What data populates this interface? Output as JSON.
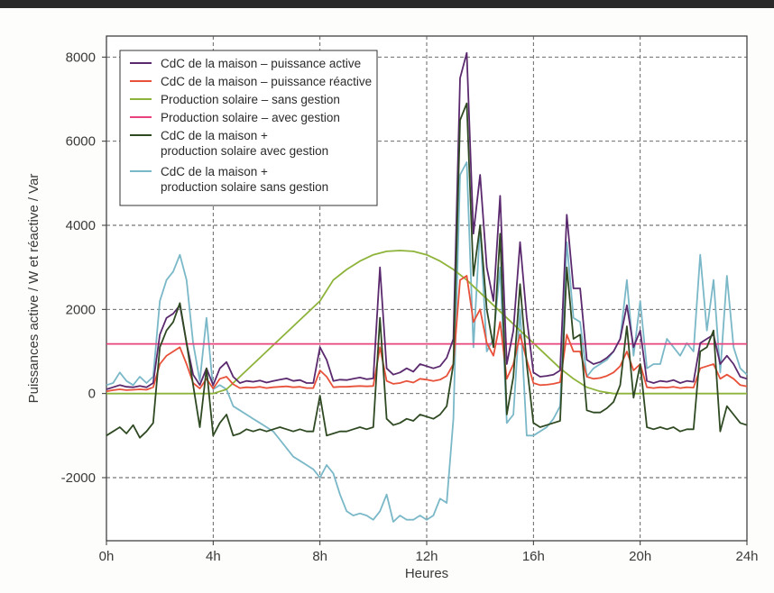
{
  "chart_data": {
    "type": "line",
    "xlabel": "Heures",
    "ylabel": "Puissances active / W et réactive / Var",
    "xlim": [
      0,
      24
    ],
    "ylim": [
      -3500,
      8500
    ],
    "x_ticks": [
      0,
      4,
      8,
      12,
      16,
      20,
      24
    ],
    "x_tick_labels": [
      "0h",
      "4h",
      "8h",
      "12h",
      "16h",
      "20h",
      "24h"
    ],
    "y_ticks": [
      -2000,
      0,
      2000,
      4000,
      6000,
      8000
    ],
    "y_tick_labels": [
      "-2000",
      "0",
      "2000",
      "4000",
      "6000",
      "8000"
    ],
    "grid": true,
    "legend_position": "top-left",
    "series": [
      {
        "name": "CdC de la maison – puissance active",
        "color": "#5b2a6e",
        "x": [
          0,
          0.25,
          0.5,
          0.75,
          1,
          1.25,
          1.5,
          1.75,
          2,
          2.25,
          2.5,
          2.75,
          3,
          3.25,
          3.5,
          3.75,
          4,
          4.25,
          4.5,
          4.75,
          5,
          5.25,
          5.5,
          5.75,
          6,
          6.25,
          6.5,
          6.75,
          7,
          7.25,
          7.5,
          7.75,
          8,
          8.25,
          8.5,
          8.75,
          9,
          9.25,
          9.5,
          9.75,
          10,
          10.25,
          10.5,
          10.75,
          11,
          11.25,
          11.5,
          11.75,
          12,
          12.25,
          12.5,
          12.75,
          13,
          13.25,
          13.5,
          13.75,
          14,
          14.25,
          14.5,
          14.75,
          15,
          15.25,
          15.5,
          15.75,
          16,
          16.25,
          16.5,
          16.75,
          17,
          17.25,
          17.5,
          17.75,
          18,
          18.25,
          18.5,
          18.75,
          19,
          19.25,
          19.5,
          19.75,
          20,
          20.25,
          20.5,
          20.75,
          21,
          21.25,
          21.5,
          21.75,
          22,
          22.25,
          22.5,
          22.75,
          23,
          23.25,
          23.5,
          23.75,
          24
        ],
        "values": [
          100,
          150,
          200,
          160,
          150,
          180,
          150,
          250,
          1400,
          1800,
          1900,
          2100,
          1200,
          450,
          200,
          600,
          200,
          600,
          750,
          400,
          250,
          300,
          280,
          310,
          260,
          300,
          330,
          360,
          300,
          320,
          250,
          250,
          1100,
          800,
          300,
          330,
          320,
          350,
          380,
          340,
          360,
          3000,
          600,
          450,
          500,
          600,
          520,
          700,
          650,
          600,
          650,
          850,
          1300,
          7500,
          8100,
          3800,
          5200,
          3000,
          2200,
          4700,
          700,
          1500,
          3600,
          1800,
          500,
          400,
          420,
          450,
          550,
          4250,
          2500,
          2500,
          800,
          700,
          750,
          850,
          1000,
          1300,
          2100,
          1100,
          1500,
          300,
          250,
          300,
          280,
          320,
          250,
          300,
          280,
          1200,
          1300,
          1400,
          700,
          900,
          700,
          400,
          350
        ]
      },
      {
        "name": "CdC de la maison – puissance réactive",
        "color": "#e8513a",
        "x": [
          0,
          0.25,
          0.5,
          0.75,
          1,
          1.25,
          1.5,
          1.75,
          2,
          2.25,
          2.5,
          2.75,
          3,
          3.25,
          3.5,
          3.75,
          4,
          4.25,
          4.5,
          4.75,
          5,
          5.25,
          5.5,
          5.75,
          6,
          6.25,
          6.5,
          6.75,
          7,
          7.25,
          7.5,
          7.75,
          8,
          8.25,
          8.5,
          8.75,
          9,
          9.25,
          9.5,
          9.75,
          10,
          10.25,
          10.5,
          10.75,
          11,
          11.25,
          11.5,
          11.75,
          12,
          12.25,
          12.5,
          12.75,
          13,
          13.25,
          13.5,
          13.75,
          14,
          14.25,
          14.5,
          14.75,
          15,
          15.25,
          15.5,
          15.75,
          16,
          16.25,
          16.5,
          16.75,
          17,
          17.25,
          17.5,
          17.75,
          18,
          18.25,
          18.5,
          18.75,
          19,
          19.25,
          19.5,
          19.75,
          20,
          20.25,
          20.5,
          20.75,
          21,
          21.25,
          21.5,
          21.75,
          22,
          22.25,
          22.5,
          22.75,
          23,
          23.25,
          23.5,
          23.75,
          24
        ],
        "values": [
          50,
          80,
          100,
          80,
          90,
          100,
          90,
          150,
          700,
          900,
          1000,
          1100,
          700,
          250,
          120,
          350,
          120,
          350,
          400,
          220,
          130,
          150,
          140,
          160,
          130,
          150,
          160,
          170,
          150,
          160,
          130,
          130,
          550,
          400,
          150,
          160,
          160,
          170,
          180,
          170,
          180,
          1100,
          300,
          230,
          250,
          300,
          260,
          350,
          330,
          300,
          330,
          420,
          700,
          2700,
          2800,
          1700,
          2000,
          1200,
          900,
          1700,
          350,
          700,
          1400,
          800,
          250,
          200,
          210,
          230,
          270,
          1400,
          1000,
          1000,
          400,
          350,
          370,
          420,
          500,
          650,
          1000,
          550,
          700,
          150,
          130,
          150,
          140,
          160,
          130,
          150,
          140,
          600,
          650,
          700,
          350,
          450,
          350,
          200,
          170
        ]
      },
      {
        "name": "Production solaire – sans gestion",
        "color": "#8db33a",
        "x": [
          0,
          4,
          4.5,
          5,
          5.5,
          6,
          6.5,
          7,
          7.5,
          8,
          8.5,
          9,
          9.5,
          10,
          10.5,
          11,
          11.5,
          12,
          12.5,
          13,
          13.5,
          14,
          14.5,
          15,
          15.5,
          16,
          16.5,
          17,
          17.5,
          18,
          18.5,
          19,
          20,
          24
        ],
        "values": [
          0,
          0,
          100,
          400,
          700,
          1000,
          1300,
          1600,
          1900,
          2200,
          2700,
          2950,
          3150,
          3300,
          3380,
          3400,
          3380,
          3300,
          3150,
          2950,
          2700,
          2400,
          2100,
          1800,
          1500,
          1200,
          900,
          600,
          350,
          150,
          50,
          0,
          0,
          0
        ]
      },
      {
        "name": "Production solaire – avec gestion",
        "color": "#e8437d",
        "x": [
          0,
          24
        ],
        "values": [
          1180,
          1180
        ]
      },
      {
        "name": "CdC de la maison + production solaire avec gestion",
        "color": "#2f4a22",
        "x": [
          0,
          0.25,
          0.5,
          0.75,
          1,
          1.25,
          1.5,
          1.75,
          2,
          2.25,
          2.5,
          2.75,
          3,
          3.25,
          3.5,
          3.75,
          4,
          4.25,
          4.5,
          4.75,
          5,
          5.25,
          5.5,
          5.75,
          6,
          6.25,
          6.5,
          6.75,
          7,
          7.25,
          7.5,
          7.75,
          8,
          8.25,
          8.5,
          8.75,
          9,
          9.25,
          9.5,
          9.75,
          10,
          10.25,
          10.5,
          10.75,
          11,
          11.25,
          11.5,
          11.75,
          12,
          12.25,
          12.5,
          12.75,
          13,
          13.25,
          13.5,
          13.75,
          14,
          14.25,
          14.5,
          14.75,
          15,
          15.25,
          15.5,
          15.75,
          16,
          16.25,
          16.5,
          16.75,
          17,
          17.25,
          17.5,
          17.75,
          18,
          18.25,
          18.5,
          18.75,
          19,
          19.25,
          19.5,
          19.75,
          20,
          20.25,
          20.5,
          20.75,
          21,
          21.25,
          21.5,
          21.75,
          22,
          22.25,
          22.5,
          22.75,
          23,
          23.25,
          23.5,
          23.75,
          24
        ],
        "values": [
          -1000,
          -900,
          -800,
          -950,
          -750,
          -1050,
          -900,
          -700,
          1100,
          1500,
          1700,
          2150,
          1200,
          200,
          -800,
          600,
          -1000,
          -700,
          -500,
          -1000,
          -950,
          -850,
          -900,
          -850,
          -900,
          -850,
          -800,
          -850,
          -900,
          -850,
          -900,
          -900,
          -50,
          -1000,
          -950,
          -900,
          -900,
          -850,
          -800,
          -850,
          -800,
          1800,
          -600,
          -750,
          -700,
          -600,
          -650,
          -500,
          -550,
          -600,
          -500,
          -300,
          700,
          6500,
          6900,
          2800,
          4000,
          2000,
          1100,
          3800,
          -500,
          400,
          2600,
          700,
          -700,
          -800,
          -750,
          -700,
          -650,
          3000,
          1300,
          1400,
          -400,
          -450,
          -450,
          -350,
          -200,
          200,
          1600,
          -100,
          700,
          -800,
          -850,
          -800,
          -850,
          -800,
          -900,
          -850,
          -850,
          1000,
          1100,
          1500,
          -900,
          -300,
          -500,
          -700,
          -750
        ]
      },
      {
        "name": "CdC de la maison + production solaire sans gestion",
        "color": "#7ab8c8",
        "x": [
          0,
          0.25,
          0.5,
          0.75,
          1,
          1.25,
          1.5,
          1.75,
          2,
          2.25,
          2.5,
          2.75,
          3,
          3.25,
          3.5,
          3.75,
          4,
          4.25,
          4.5,
          4.75,
          5,
          5.25,
          5.5,
          5.75,
          6,
          6.25,
          6.5,
          6.75,
          7,
          7.25,
          7.5,
          7.75,
          8,
          8.25,
          8.5,
          8.75,
          9,
          9.25,
          9.5,
          9.75,
          10,
          10.25,
          10.5,
          10.75,
          11,
          11.25,
          11.5,
          11.75,
          12,
          12.25,
          12.5,
          12.75,
          13,
          13.25,
          13.5,
          13.75,
          14,
          14.25,
          14.5,
          14.75,
          15,
          15.25,
          15.5,
          15.75,
          16,
          16.25,
          16.5,
          16.75,
          17,
          17.25,
          17.5,
          17.75,
          18,
          18.25,
          18.5,
          18.75,
          19,
          19.25,
          19.5,
          19.75,
          20,
          20.25,
          20.5,
          20.75,
          21,
          21.25,
          21.5,
          21.75,
          22,
          22.25,
          22.5,
          22.75,
          23,
          23.25,
          23.5,
          23.75,
          24
        ],
        "values": [
          200,
          250,
          500,
          300,
          200,
          400,
          250,
          400,
          2200,
          2700,
          2900,
          3300,
          2700,
          1200,
          300,
          1800,
          100,
          200,
          100,
          -300,
          -400,
          -500,
          -600,
          -700,
          -800,
          -900,
          -1100,
          -1300,
          -1500,
          -1600,
          -1700,
          -1800,
          -2000,
          -1700,
          -1900,
          -2400,
          -2800,
          -2900,
          -2850,
          -2900,
          -3000,
          -2800,
          -2400,
          -3050,
          -2900,
          -3000,
          -3000,
          -2900,
          -3000,
          -2900,
          -2500,
          -2600,
          -600,
          5200,
          5500,
          1100,
          4000,
          1000,
          1300,
          3000,
          -700,
          -500,
          2000,
          -1000,
          -1000,
          -900,
          -800,
          -600,
          -300,
          3600,
          1800,
          1700,
          400,
          600,
          700,
          800,
          1000,
          1300,
          2700,
          900,
          2200,
          600,
          700,
          700,
          1300,
          1100,
          900,
          1200,
          1000,
          3300,
          1500,
          2700,
          500,
          2800,
          1100,
          600,
          450
        ]
      }
    ]
  }
}
